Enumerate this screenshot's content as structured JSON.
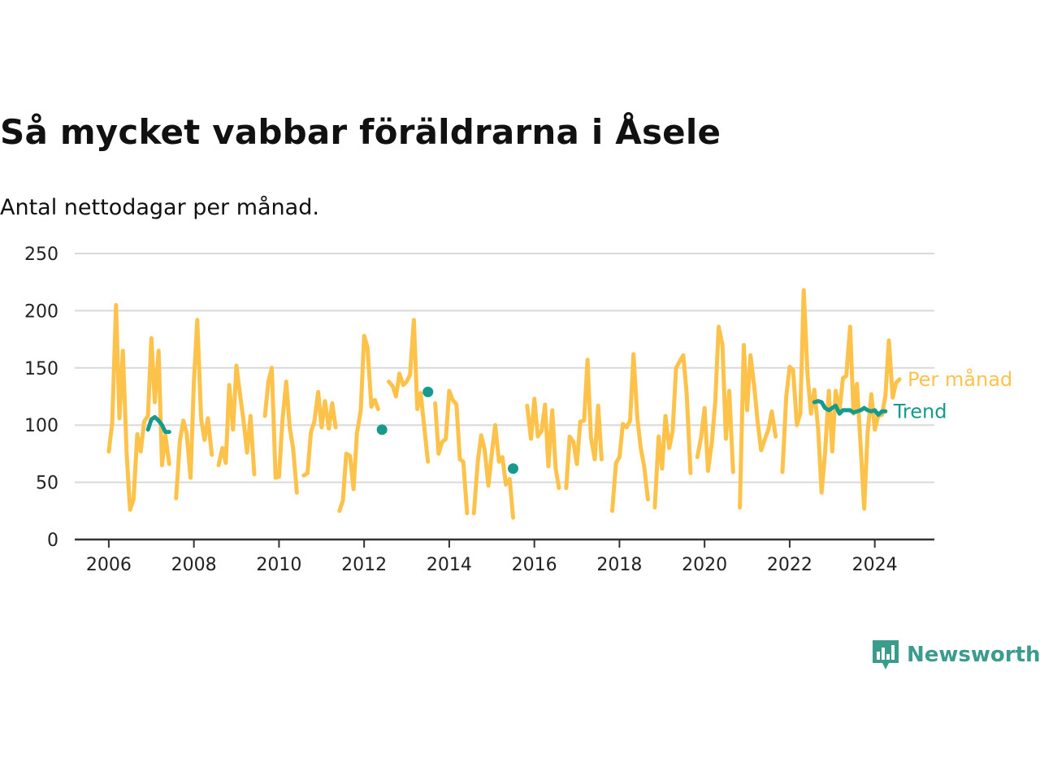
{
  "title": "Så mycket vabbar föräldrarna i Åsele",
  "subtitle": "Antal nettodagar per månad.",
  "brand": "Newsworthy",
  "colors": {
    "monthly": "#fdc24a",
    "trend": "#169a8d",
    "grid": "#d9d9d9",
    "axis": "#333333",
    "brand": "#3b9b8c"
  },
  "chart_data": {
    "type": "line",
    "title": "Så mycket vabbar föräldrarna i Åsele",
    "xlabel": "",
    "ylabel": "",
    "xlim": [
      2005.2,
      2025.4
    ],
    "ylim": [
      0,
      250
    ],
    "yticks": [
      0,
      50,
      100,
      150,
      200,
      250
    ],
    "xticks": [
      2006,
      2008,
      2010,
      2012,
      2014,
      2016,
      2018,
      2020,
      2022,
      2024
    ],
    "grid": true,
    "legend": "right-end-labels",
    "series": [
      {
        "name": "Per månad",
        "color": "#fdc24a",
        "segments": [
          [
            [
              2006.0,
              77
            ],
            [
              2006.08,
              102
            ],
            [
              2006.17,
              205
            ],
            [
              2006.25,
              106
            ],
            [
              2006.33,
              165
            ],
            [
              2006.42,
              75
            ],
            [
              2006.5,
              26
            ],
            [
              2006.58,
              35
            ],
            [
              2006.67,
              92
            ],
            [
              2006.75,
              77
            ],
            [
              2006.83,
              103
            ],
            [
              2006.92,
              108
            ],
            [
              2007.0,
              176
            ],
            [
              2007.08,
              120
            ],
            [
              2007.17,
              165
            ],
            [
              2007.25,
              65
            ],
            [
              2007.33,
              91
            ],
            [
              2007.42,
              66
            ]
          ],
          [
            [
              2007.58,
              36
            ],
            [
              2007.67,
              86
            ],
            [
              2007.75,
              104
            ],
            [
              2007.83,
              93
            ],
            [
              2007.92,
              54
            ],
            [
              2008.0,
              139
            ],
            [
              2008.08,
              192
            ],
            [
              2008.17,
              105
            ],
            [
              2008.25,
              87
            ],
            [
              2008.33,
              106
            ],
            [
              2008.42,
              74
            ]
          ],
          [
            [
              2008.58,
              65
            ],
            [
              2008.67,
              80
            ],
            [
              2008.75,
              67
            ],
            [
              2008.83,
              135
            ],
            [
              2008.92,
              96
            ],
            [
              2009.0,
              152
            ],
            [
              2009.08,
              128
            ],
            [
              2009.17,
              103
            ],
            [
              2009.25,
              76
            ],
            [
              2009.33,
              108
            ],
            [
              2009.42,
              57
            ]
          ],
          [
            [
              2009.67,
              108
            ],
            [
              2009.75,
              138
            ],
            [
              2009.83,
              150
            ],
            [
              2009.92,
              54
            ],
            [
              2010.0,
              55
            ],
            [
              2010.08,
              104
            ],
            [
              2010.17,
              138
            ],
            [
              2010.25,
              98
            ],
            [
              2010.33,
              80
            ],
            [
              2010.42,
              41
            ]
          ],
          [
            [
              2010.58,
              56
            ],
            [
              2010.67,
              58
            ],
            [
              2010.75,
              94
            ],
            [
              2010.83,
              103
            ],
            [
              2010.92,
              129
            ],
            [
              2011.0,
              98
            ],
            [
              2011.08,
              121
            ],
            [
              2011.17,
              97
            ],
            [
              2011.25,
              119
            ],
            [
              2011.33,
              98
            ]
          ],
          [
            [
              2011.42,
              25
            ],
            [
              2011.5,
              34
            ],
            [
              2011.58,
              75
            ],
            [
              2011.67,
              73
            ],
            [
              2011.75,
              44
            ],
            [
              2011.83,
              93
            ],
            [
              2011.92,
              113
            ],
            [
              2012.0,
              178
            ],
            [
              2012.08,
              168
            ],
            [
              2012.17,
              116
            ],
            [
              2012.25,
              122
            ],
            [
              2012.33,
              114
            ]
          ],
          [
            [
              2012.58,
              138
            ],
            [
              2012.67,
              134
            ],
            [
              2012.75,
              125
            ],
            [
              2012.83,
              145
            ],
            [
              2012.92,
              135
            ],
            [
              2013.0,
              138
            ],
            [
              2013.08,
              144
            ],
            [
              2013.17,
              192
            ],
            [
              2013.25,
              114
            ],
            [
              2013.33,
              128
            ],
            [
              2013.42,
              96
            ],
            [
              2013.5,
              68
            ]
          ],
          [
            [
              2013.67,
              119
            ],
            [
              2013.75,
              75
            ],
            [
              2013.83,
              85
            ],
            [
              2013.92,
              88
            ],
            [
              2014.0,
              130
            ],
            [
              2014.08,
              122
            ],
            [
              2014.17,
              118
            ],
            [
              2014.25,
              70
            ],
            [
              2014.33,
              68
            ],
            [
              2014.42,
              23
            ]
          ],
          [
            [
              2014.58,
              23
            ],
            [
              2014.67,
              68
            ],
            [
              2014.75,
              91
            ],
            [
              2014.83,
              79
            ],
            [
              2014.92,
              47
            ],
            [
              2015.0,
              75
            ],
            [
              2015.08,
              100
            ],
            [
              2015.17,
              68
            ],
            [
              2015.25,
              72
            ],
            [
              2015.33,
              48
            ],
            [
              2015.42,
              53
            ],
            [
              2015.5,
              19
            ]
          ],
          [
            [
              2015.83,
              117
            ],
            [
              2015.92,
              88
            ],
            [
              2016.0,
              123
            ],
            [
              2016.08,
              90
            ],
            [
              2016.17,
              95
            ],
            [
              2016.25,
              118
            ],
            [
              2016.33,
              64
            ],
            [
              2016.42,
              113
            ],
            [
              2016.5,
              62
            ],
            [
              2016.58,
              45
            ]
          ],
          [
            [
              2016.75,
              45
            ],
            [
              2016.83,
              90
            ],
            [
              2016.92,
              85
            ],
            [
              2017.0,
              66
            ],
            [
              2017.08,
              103
            ],
            [
              2017.17,
              104
            ],
            [
              2017.25,
              157
            ],
            [
              2017.33,
              89
            ],
            [
              2017.42,
              70
            ],
            [
              2017.5,
              117
            ],
            [
              2017.58,
              70
            ]
          ],
          [
            [
              2017.83,
              25
            ],
            [
              2017.92,
              67
            ],
            [
              2018.0,
              72
            ],
            [
              2018.08,
              101
            ],
            [
              2018.17,
              98
            ],
            [
              2018.25,
              104
            ],
            [
              2018.33,
              162
            ],
            [
              2018.42,
              106
            ],
            [
              2018.5,
              80
            ],
            [
              2018.58,
              64
            ],
            [
              2018.67,
              35
            ]
          ],
          [
            [
              2018.83,
              28
            ],
            [
              2018.92,
              90
            ],
            [
              2019.0,
              62
            ],
            [
              2019.08,
              108
            ],
            [
              2019.17,
              80
            ],
            [
              2019.25,
              95
            ],
            [
              2019.33,
              150
            ],
            [
              2019.42,
              156
            ],
            [
              2019.5,
              161
            ],
            [
              2019.58,
              127
            ],
            [
              2019.67,
              58
            ]
          ],
          [
            [
              2019.83,
              72
            ],
            [
              2019.92,
              90
            ],
            [
              2020.0,
              115
            ],
            [
              2020.08,
              60
            ],
            [
              2020.17,
              85
            ],
            [
              2020.25,
              120
            ],
            [
              2020.33,
              186
            ],
            [
              2020.42,
              170
            ],
            [
              2020.5,
              88
            ],
            [
              2020.58,
              130
            ],
            [
              2020.67,
              59
            ]
          ],
          [
            [
              2020.83,
              28
            ],
            [
              2020.92,
              170
            ],
            [
              2021.0,
              113
            ],
            [
              2021.08,
              161
            ],
            [
              2021.17,
              133
            ],
            [
              2021.25,
              102
            ],
            [
              2021.33,
              78
            ],
            [
              2021.42,
              88
            ],
            [
              2021.5,
              96
            ],
            [
              2021.58,
              112
            ],
            [
              2021.67,
              90
            ]
          ],
          [
            [
              2021.83,
              59
            ],
            [
              2021.92,
              125
            ],
            [
              2022.0,
              151
            ],
            [
              2022.08,
              148
            ],
            [
              2022.17,
              100
            ],
            [
              2022.25,
              110
            ],
            [
              2022.33,
              218
            ],
            [
              2022.42,
              144
            ],
            [
              2022.5,
              110
            ],
            [
              2022.58,
              131
            ],
            [
              2022.67,
              96
            ],
            [
              2022.75,
              41
            ],
            [
              2022.83,
              75
            ],
            [
              2022.92,
              130
            ],
            [
              2023.0,
              77
            ],
            [
              2023.08,
              130
            ],
            [
              2023.17,
              112
            ],
            [
              2023.25,
              141
            ],
            [
              2023.33,
              143
            ],
            [
              2023.42,
              186
            ],
            [
              2023.5,
              110
            ],
            [
              2023.58,
              136
            ],
            [
              2023.67,
              80
            ],
            [
              2023.75,
              27
            ],
            [
              2023.83,
              93
            ],
            [
              2023.92,
              127
            ],
            [
              2024.0,
              96
            ],
            [
              2024.08,
              108
            ],
            [
              2024.17,
              109
            ],
            [
              2024.25,
              126
            ],
            [
              2024.33,
              174
            ],
            [
              2024.42,
              124
            ],
            [
              2024.5,
              137
            ],
            [
              2024.58,
              140
            ]
          ]
        ]
      },
      {
        "name": "Trend",
        "color": "#169a8d",
        "segments": [
          [
            [
              2006.92,
              96
            ],
            [
              2007.0,
              105
            ],
            [
              2007.08,
              107
            ],
            [
              2007.17,
              104
            ],
            [
              2007.25,
              100
            ],
            [
              2007.33,
              94
            ],
            [
              2007.42,
              94
            ]
          ],
          [
            [
              2012.42,
              96
            ]
          ],
          [
            [
              2013.5,
              129
            ]
          ],
          [
            [
              2015.5,
              62
            ]
          ],
          [
            [
              2022.58,
              120
            ],
            [
              2022.67,
              121
            ],
            [
              2022.75,
              120
            ],
            [
              2022.83,
              115
            ],
            [
              2022.92,
              113
            ],
            [
              2023.0,
              115
            ],
            [
              2023.08,
              117
            ],
            [
              2023.17,
              110
            ],
            [
              2023.25,
              113
            ],
            [
              2023.33,
              113
            ],
            [
              2023.42,
              113
            ],
            [
              2023.5,
              111
            ],
            [
              2023.58,
              112
            ],
            [
              2023.67,
              113
            ],
            [
              2023.75,
              115
            ],
            [
              2023.83,
              113
            ],
            [
              2023.92,
              112
            ],
            [
              2024.0,
              113
            ],
            [
              2024.08,
              109
            ],
            [
              2024.17,
              112
            ],
            [
              2024.25,
              112
            ]
          ]
        ]
      }
    ]
  }
}
